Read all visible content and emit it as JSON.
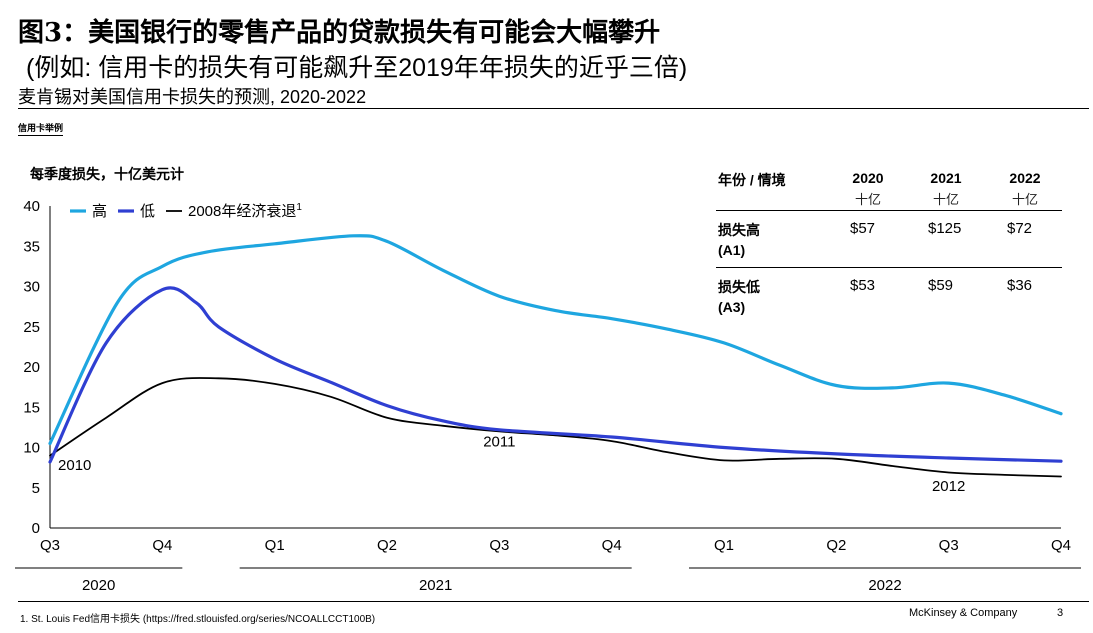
{
  "header": {
    "title": "图3：美国银行的零售产品的贷款损失有可能会大幅攀升",
    "title2": "(例如: 信用卡的损失有可能飙升至2019年年损失的近乎三倍)",
    "subtitle": "麦肯锡对美国信用卡损失的预测, 2020-2022",
    "tag": "信用卡举例"
  },
  "chart_data": {
    "type": "line",
    "ylabel": "每季度损失，十亿美元计",
    "ylim": [
      0,
      40
    ],
    "yticks": [
      "0",
      "5",
      "10",
      "15",
      "20",
      "25",
      "30",
      "35",
      "40"
    ],
    "categories": [
      "Q3",
      "Q4",
      "Q1",
      "Q2",
      "Q3",
      "Q4",
      "Q1",
      "Q2",
      "Q3",
      "Q4"
    ],
    "years": [
      {
        "label": "2020",
        "from": 0,
        "to": 1
      },
      {
        "label": "2021",
        "from": 2,
        "to": 5
      },
      {
        "label": "2022",
        "from": 6,
        "to": 9
      }
    ],
    "series": [
      {
        "name": "高",
        "color": "#1ea6e0",
        "points": [
          [
            0,
            10.5
          ],
          [
            0.6,
            28
          ],
          [
            1,
            32.5
          ],
          [
            1.4,
            34.3
          ],
          [
            2,
            35.3
          ],
          [
            2.7,
            36.3
          ],
          [
            3,
            35.6
          ],
          [
            3.5,
            32
          ],
          [
            4,
            28.8
          ],
          [
            4.5,
            27
          ],
          [
            5,
            26
          ],
          [
            5.5,
            24.7
          ],
          [
            6,
            23
          ],
          [
            6.5,
            20.2
          ],
          [
            7,
            17.7
          ],
          [
            7.5,
            17.4
          ],
          [
            8,
            18
          ],
          [
            8.5,
            16.5
          ],
          [
            9,
            14.2
          ]
        ]
      },
      {
        "name": "低",
        "color": "#2f3fd2",
        "points": [
          [
            0,
            8.2
          ],
          [
            0.5,
            23
          ],
          [
            1,
            29.6
          ],
          [
            1.3,
            28
          ],
          [
            1.5,
            25
          ],
          [
            2,
            21
          ],
          [
            2.5,
            18.1
          ],
          [
            3,
            15.2
          ],
          [
            3.5,
            13.3
          ],
          [
            4,
            12.2
          ],
          [
            5,
            11.3
          ],
          [
            6,
            10
          ],
          [
            7,
            9.2
          ],
          [
            8,
            8.7
          ],
          [
            9,
            8.3
          ]
        ]
      },
      {
        "name": "2008年经济衰退",
        "name_sup": "1",
        "color": "#000000",
        "points": [
          [
            0,
            9
          ],
          [
            0.5,
            13.7
          ],
          [
            1,
            18
          ],
          [
            1.5,
            18.6
          ],
          [
            2,
            17.9
          ],
          [
            2.5,
            16.3
          ],
          [
            3,
            13.7
          ],
          [
            3.5,
            12.7
          ],
          [
            4,
            12
          ],
          [
            4.5,
            11.5
          ],
          [
            5,
            10.8
          ],
          [
            5.5,
            9.4
          ],
          [
            6,
            8.4
          ],
          [
            6.5,
            8.6
          ],
          [
            7,
            8.6
          ],
          [
            7.5,
            7.7
          ],
          [
            8,
            6.9
          ],
          [
            8.5,
            6.6
          ],
          [
            9,
            6.4
          ]
        ]
      }
    ],
    "annotations": [
      {
        "text": "2010",
        "x": 0.22,
        "y": 7.2
      },
      {
        "text": "2011",
        "x": 4.0,
        "y": 10.1
      },
      {
        "text": "2012",
        "x": 8.0,
        "y": 4.6
      }
    ]
  },
  "table": {
    "header_label": "年份 / 情境",
    "years": [
      {
        "year": "2020",
        "unit": "十亿"
      },
      {
        "year": "2021",
        "unit": "十亿"
      },
      {
        "year": "2022",
        "unit": "十亿"
      }
    ],
    "rows": [
      {
        "label": "损失高",
        "code": "(A1)",
        "values": [
          "$57",
          "$125",
          "$72"
        ]
      },
      {
        "label": "损失低",
        "code": "(A3)",
        "values": [
          "$53",
          "$59",
          "$36"
        ]
      }
    ]
  },
  "footer": {
    "footnote": "1.    St. Louis Fed信用卡损失 (https://fred.stlouisfed.org/series/NCOALLCCT100B)",
    "brand": "McKinsey & Company",
    "page": "3"
  }
}
